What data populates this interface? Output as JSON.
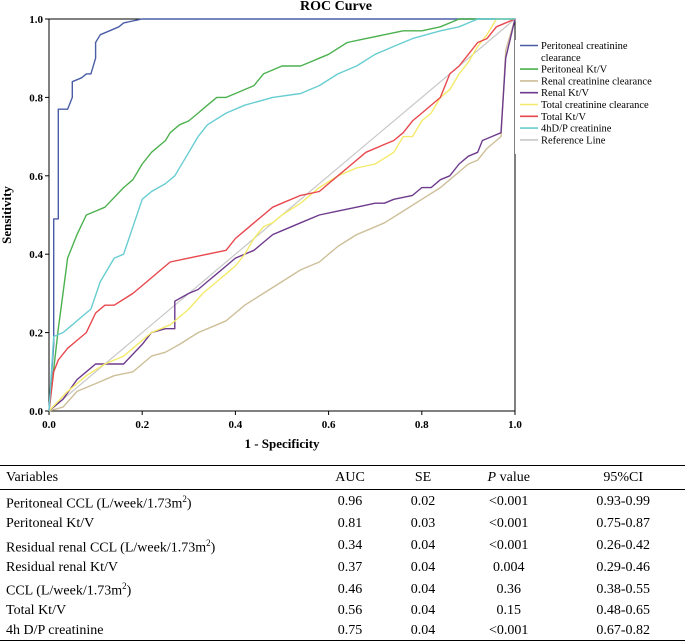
{
  "chart_data": {
    "type": "line",
    "title": "ROC Curve",
    "xlabel": "1 - Specificity",
    "ylabel": "Sensitivity",
    "xlim": [
      0,
      1
    ],
    "ylim": [
      0,
      1
    ],
    "xticks": [
      "0.0",
      "0.2",
      "0.4",
      "0.6",
      "0.8",
      "1.0"
    ],
    "yticks": [
      "0.0",
      "0.2",
      "0.4",
      "0.6",
      "0.8",
      "1.0"
    ],
    "series": [
      {
        "name": "Peritoneal creatinine clearance",
        "legend_lines": [
          "Peritoneal creatinine",
          "clearance"
        ],
        "color": "#4a5ea8",
        "x": [
          0,
          0.01,
          0.01,
          0.02,
          0.02,
          0.04,
          0.05,
          0.05,
          0.07,
          0.08,
          0.09,
          0.1,
          0.1,
          0.11,
          0.13,
          0.15,
          0.16,
          0.2,
          0.35,
          1.0
        ],
        "y": [
          0,
          0.17,
          0.49,
          0.49,
          0.77,
          0.77,
          0.8,
          0.84,
          0.85,
          0.86,
          0.86,
          0.9,
          0.94,
          0.96,
          0.97,
          0.98,
          0.99,
          1.0,
          1.0,
          1.0
        ]
      },
      {
        "name": "Peritoneal Kt/V",
        "legend_lines": [
          "Peritoneal Kt/V"
        ],
        "color": "#4cb14f",
        "x": [
          0,
          0.02,
          0.03,
          0.04,
          0.06,
          0.08,
          0.1,
          0.12,
          0.16,
          0.18,
          0.2,
          0.22,
          0.25,
          0.26,
          0.28,
          0.3,
          0.32,
          0.34,
          0.36,
          0.38,
          0.4,
          0.44,
          0.46,
          0.5,
          0.54,
          0.56,
          0.58,
          0.6,
          0.64,
          0.68,
          0.72,
          0.76,
          0.8,
          0.84,
          0.88,
          1.0
        ],
        "y": [
          0,
          0.21,
          0.3,
          0.39,
          0.45,
          0.5,
          0.51,
          0.52,
          0.57,
          0.59,
          0.63,
          0.66,
          0.69,
          0.71,
          0.73,
          0.74,
          0.76,
          0.78,
          0.8,
          0.8,
          0.81,
          0.83,
          0.86,
          0.88,
          0.88,
          0.89,
          0.9,
          0.91,
          0.94,
          0.95,
          0.96,
          0.97,
          0.97,
          0.98,
          1.0,
          1.0
        ]
      },
      {
        "name": "Renal creatinine clearance",
        "legend_lines": [
          "Renal creatinine clearance"
        ],
        "color": "#cdbf98",
        "x": [
          0,
          0.03,
          0.06,
          0.1,
          0.14,
          0.18,
          0.2,
          0.22,
          0.25,
          0.28,
          0.32,
          0.36,
          0.38,
          0.4,
          0.42,
          0.46,
          0.5,
          0.54,
          0.58,
          0.62,
          0.66,
          0.7,
          0.72,
          0.76,
          0.8,
          0.84,
          0.86,
          0.88,
          0.9,
          0.92,
          0.94,
          0.96,
          0.97,
          0.98,
          1.0
        ],
        "y": [
          0,
          0.01,
          0.05,
          0.07,
          0.09,
          0.1,
          0.12,
          0.14,
          0.15,
          0.17,
          0.2,
          0.22,
          0.23,
          0.25,
          0.27,
          0.3,
          0.33,
          0.36,
          0.38,
          0.42,
          0.45,
          0.47,
          0.48,
          0.51,
          0.54,
          0.57,
          0.59,
          0.61,
          0.63,
          0.64,
          0.67,
          0.69,
          0.7,
          0.92,
          1.0
        ]
      },
      {
        "name": "Renal Kt/V",
        "legend_lines": [
          "Renal Kt/V"
        ],
        "color": "#6e3a8c",
        "x": [
          0,
          0.03,
          0.06,
          0.08,
          0.1,
          0.16,
          0.2,
          0.22,
          0.25,
          0.27,
          0.27,
          0.3,
          0.32,
          0.34,
          0.36,
          0.38,
          0.4,
          0.44,
          0.46,
          0.48,
          0.5,
          0.54,
          0.58,
          0.62,
          0.66,
          0.7,
          0.72,
          0.74,
          0.78,
          0.8,
          0.82,
          0.84,
          0.86,
          0.88,
          0.9,
          0.92,
          0.93,
          0.95,
          0.97,
          0.98,
          1.0
        ],
        "y": [
          0,
          0.03,
          0.08,
          0.1,
          0.12,
          0.12,
          0.17,
          0.2,
          0.21,
          0.21,
          0.28,
          0.3,
          0.31,
          0.33,
          0.35,
          0.37,
          0.39,
          0.41,
          0.43,
          0.45,
          0.46,
          0.48,
          0.5,
          0.51,
          0.52,
          0.53,
          0.53,
          0.54,
          0.55,
          0.57,
          0.57,
          0.59,
          0.6,
          0.63,
          0.65,
          0.66,
          0.69,
          0.7,
          0.71,
          0.9,
          1.0
        ]
      },
      {
        "name": "Total creatinine clearance",
        "legend_lines": [
          "Total creatinine clearance"
        ],
        "color": "#f4ea6a",
        "x": [
          0,
          0.04,
          0.06,
          0.08,
          0.12,
          0.16,
          0.18,
          0.2,
          0.22,
          0.26,
          0.3,
          0.33,
          0.36,
          0.38,
          0.4,
          0.42,
          0.44,
          0.46,
          0.48,
          0.5,
          0.54,
          0.58,
          0.62,
          0.66,
          0.7,
          0.74,
          0.76,
          0.78,
          0.8,
          0.82,
          0.84,
          0.86,
          0.88,
          0.9,
          0.92,
          0.94,
          0.96,
          1.0
        ],
        "y": [
          0,
          0.05,
          0.07,
          0.09,
          0.12,
          0.14,
          0.16,
          0.18,
          0.2,
          0.22,
          0.26,
          0.3,
          0.33,
          0.35,
          0.37,
          0.4,
          0.44,
          0.47,
          0.48,
          0.5,
          0.53,
          0.57,
          0.6,
          0.62,
          0.63,
          0.66,
          0.7,
          0.7,
          0.74,
          0.76,
          0.8,
          0.82,
          0.86,
          0.89,
          0.93,
          0.96,
          1.0,
          1.0
        ]
      },
      {
        "name": "Total Kt/V",
        "legend_lines": [
          "Total Kt/V"
        ],
        "color": "#e8474d",
        "x": [
          0,
          0.01,
          0.02,
          0.04,
          0.06,
          0.08,
          0.1,
          0.12,
          0.14,
          0.18,
          0.2,
          0.24,
          0.26,
          0.3,
          0.34,
          0.38,
          0.4,
          0.42,
          0.44,
          0.46,
          0.48,
          0.5,
          0.54,
          0.58,
          0.6,
          0.62,
          0.64,
          0.68,
          0.72,
          0.74,
          0.76,
          0.78,
          0.8,
          0.84,
          0.86,
          0.88,
          0.9,
          0.92,
          0.94,
          0.96,
          1.0
        ],
        "y": [
          0,
          0.1,
          0.13,
          0.16,
          0.18,
          0.2,
          0.25,
          0.27,
          0.27,
          0.3,
          0.32,
          0.36,
          0.38,
          0.39,
          0.4,
          0.41,
          0.44,
          0.46,
          0.48,
          0.5,
          0.52,
          0.53,
          0.55,
          0.56,
          0.58,
          0.6,
          0.62,
          0.66,
          0.68,
          0.69,
          0.71,
          0.74,
          0.76,
          0.8,
          0.86,
          0.88,
          0.91,
          0.94,
          0.95,
          0.98,
          1.0
        ]
      },
      {
        "name": "4hD/P creatinine",
        "legend_lines": [
          "4hD/P creatinine"
        ],
        "color": "#68cdd1",
        "x": [
          0,
          0.01,
          0.03,
          0.05,
          0.07,
          0.09,
          0.11,
          0.14,
          0.16,
          0.18,
          0.2,
          0.22,
          0.25,
          0.27,
          0.3,
          0.32,
          0.34,
          0.38,
          0.42,
          0.48,
          0.54,
          0.58,
          0.62,
          0.66,
          0.7,
          0.74,
          0.78,
          0.84,
          0.88,
          0.92,
          1.0
        ],
        "y": [
          0,
          0.19,
          0.2,
          0.22,
          0.24,
          0.26,
          0.33,
          0.39,
          0.4,
          0.47,
          0.54,
          0.56,
          0.58,
          0.6,
          0.66,
          0.7,
          0.73,
          0.76,
          0.78,
          0.8,
          0.81,
          0.83,
          0.86,
          0.88,
          0.91,
          0.93,
          0.95,
          0.97,
          0.98,
          1.0,
          1.0
        ]
      },
      {
        "name": "Reference Line",
        "legend_lines": [
          "Reference Line"
        ],
        "color": "#c8c8c8",
        "x": [
          0,
          1
        ],
        "y": [
          0,
          1
        ]
      }
    ]
  },
  "table": {
    "headers": {
      "variables": "Variables",
      "auc": "AUC",
      "se": "SE",
      "p_italic": "P",
      "p_rest": " value",
      "ci": "95%CI"
    },
    "rows": [
      {
        "variable": "Peritoneal CCL (L/week/1.73m",
        "sup": "2",
        "close": ")",
        "auc": "0.96",
        "se": "0.02",
        "p": "<0.001",
        "ci": "0.93-0.99"
      },
      {
        "variable": "Peritoneal Kt/V",
        "sup": "",
        "close": "",
        "auc": "0.81",
        "se": "0.03",
        "p": "<0.001",
        "ci": "0.75-0.87"
      },
      {
        "variable": "Residual renal CCL (L/week/1.73m",
        "sup": "2",
        "close": ")",
        "auc": "0.34",
        "se": "0.04",
        "p": "<0.001",
        "ci": "0.26-0.42"
      },
      {
        "variable": "Residual renal Kt/V",
        "sup": "",
        "close": "",
        "auc": "0.37",
        "se": "0.04",
        "p": "0.004",
        "ci": "0.29-0.46"
      },
      {
        "variable": "CCL (L/week/1.73m",
        "sup": "2",
        "close": ")",
        "auc": "0.46",
        "se": "0.04",
        "p": "0.36",
        "ci": "0.38-0.55"
      },
      {
        "variable": "Total Kt/V",
        "sup": "",
        "close": "",
        "auc": "0.56",
        "se": "0.04",
        "p": "0.15",
        "ci": "0.48-0.65"
      },
      {
        "variable": "4h D/P creatinine",
        "sup": "",
        "close": "",
        "auc": "0.75",
        "se": "0.04",
        "p": "<0.001",
        "ci": "0.67-0.82"
      }
    ]
  }
}
